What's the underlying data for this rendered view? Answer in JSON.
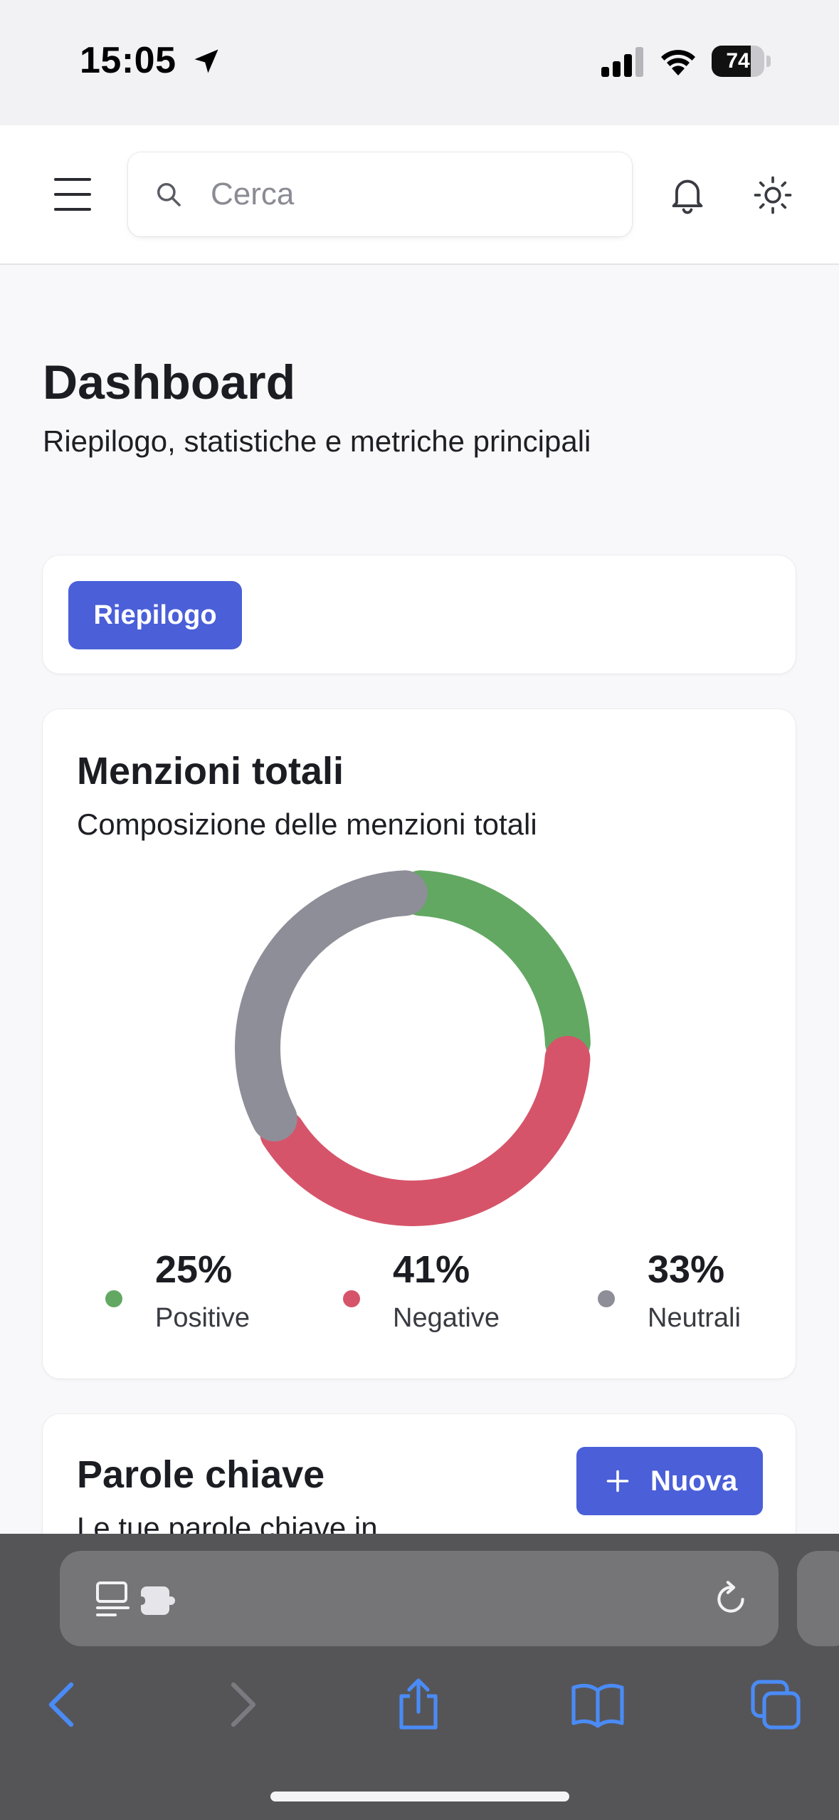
{
  "status_bar": {
    "time": "15:05",
    "battery_percent": "74",
    "battery_level": 0.74,
    "icons": [
      "location-arrow-icon",
      "cellular-signal-icon",
      "wifi-icon",
      "battery-icon"
    ]
  },
  "header": {
    "search_placeholder": "Cerca",
    "icons": [
      "hamburger-menu-icon",
      "search-icon",
      "bell-icon",
      "sun-icon"
    ]
  },
  "page": {
    "title": "Dashboard",
    "subtitle": "Riepilogo, statistiche e metriche principali"
  },
  "tabs": [
    {
      "label": "Riepilogo",
      "active": true
    }
  ],
  "mentions": {
    "title": "Menzioni totali",
    "subtitle": "Composizione delle menzioni totali",
    "chart_data": {
      "type": "pie",
      "donut": true,
      "categories": [
        "Positive",
        "Negative",
        "Neutrali"
      ],
      "values": [
        25,
        41,
        33
      ],
      "value_labels": [
        "25%",
        "41%",
        "33%"
      ],
      "colors": [
        "#62a862",
        "#d6546a",
        "#8e8e99"
      ],
      "legend_placement": "bottom"
    }
  },
  "keywords": {
    "title": "Parole chiave",
    "subtitle": "Le tue parole chiave in",
    "new_button_label": "Nuova"
  },
  "browser": {
    "icons": [
      "reader-icon",
      "extension-icon",
      "reload-icon",
      "back-icon",
      "forward-icon",
      "share-icon",
      "bookmarks-icon",
      "tabs-icon"
    ]
  },
  "colors": {
    "accent": "#4a5fd8"
  }
}
